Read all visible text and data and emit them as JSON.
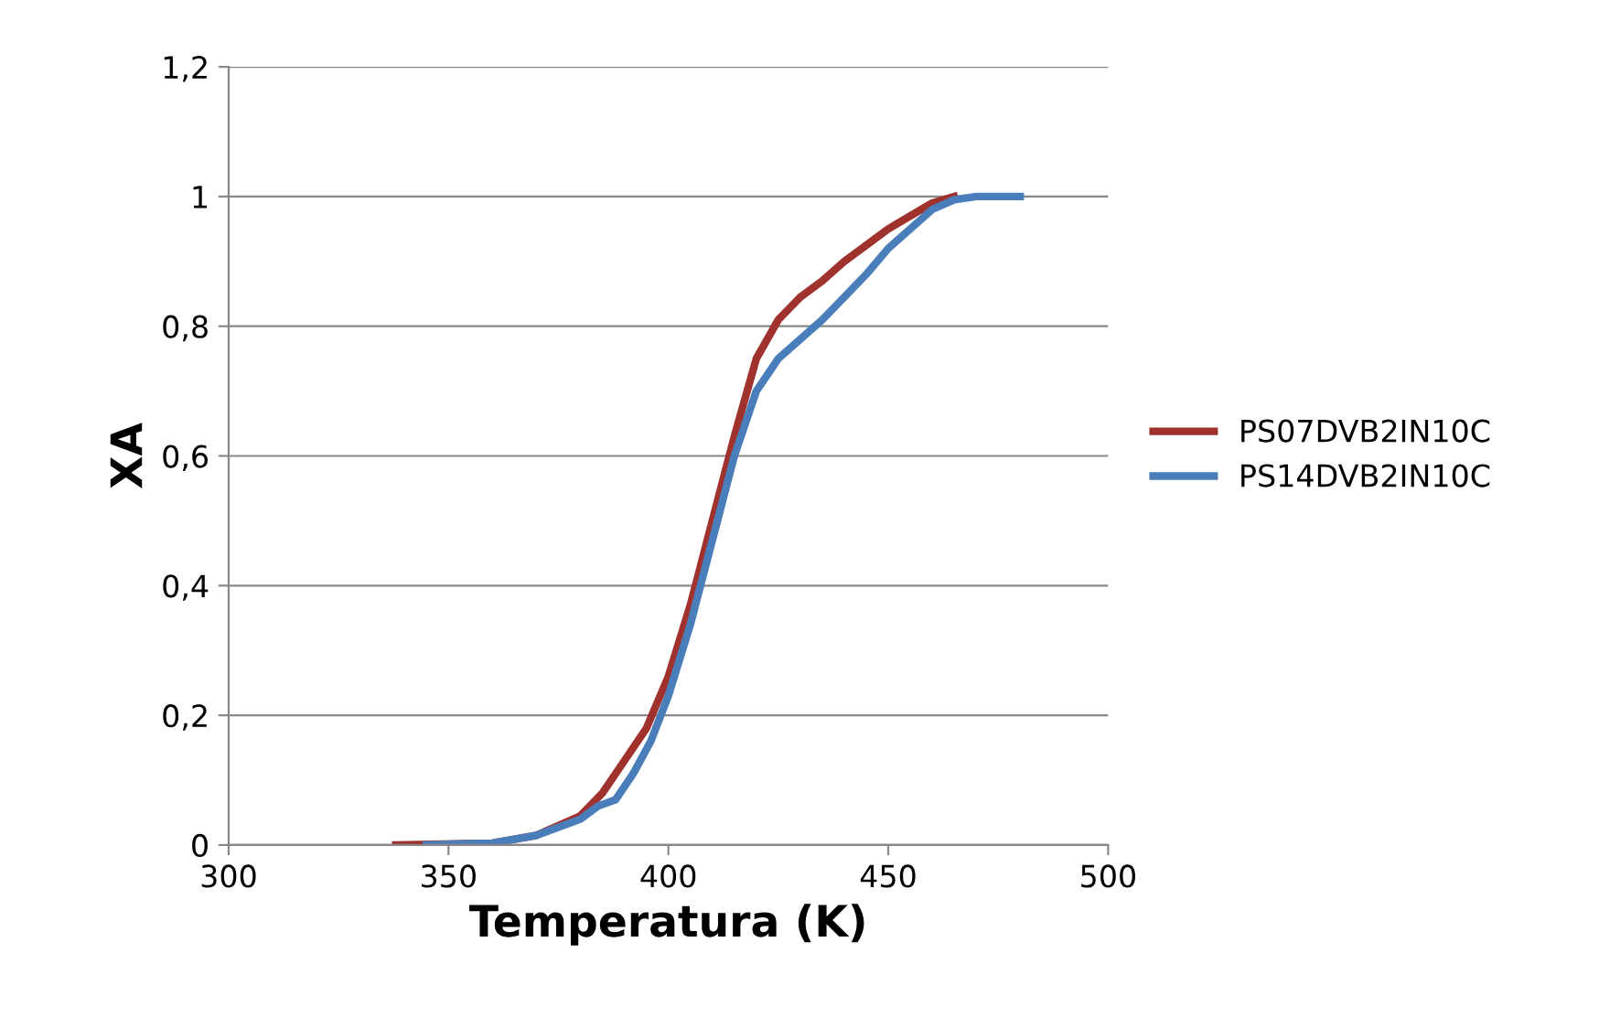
{
  "chart_data": {
    "type": "line",
    "xlabel": "Temperatura (K)",
    "ylabel": "XA",
    "xlim": [
      300,
      500
    ],
    "xticks": [
      300,
      350,
      400,
      450,
      500
    ],
    "ylim": [
      0,
      1.2
    ],
    "yticks": [
      0,
      {
        "value": 0.2,
        "label": "0,2"
      },
      {
        "value": 0.4,
        "label": "0,4"
      },
      {
        "value": 0.6,
        "label": "0,6"
      },
      {
        "value": 0.8,
        "label": "0,8"
      },
      1,
      {
        "value": 1.2,
        "label": "1,2"
      }
    ],
    "grid": "y",
    "legend": "right",
    "marker": "none",
    "line_style": "solid",
    "series": [
      {
        "name": "PS07DVB2IN10C",
        "color": "#a0322d",
        "x": [
          338,
          360,
          370,
          380,
          385,
          390,
          395,
          400,
          405,
          410,
          415,
          420,
          425,
          430,
          435,
          440,
          445,
          450,
          455,
          460,
          465
        ],
        "values": [
          0,
          0.003,
          0.015,
          0.045,
          0.08,
          0.13,
          0.18,
          0.26,
          0.37,
          0.5,
          0.63,
          0.75,
          0.81,
          0.845,
          0.87,
          0.9,
          0.925,
          0.95,
          0.97,
          0.99,
          1.0
        ]
      },
      {
        "name": "PS14DVB2IN10C",
        "color": "#4a7ebb",
        "x": [
          345,
          360,
          370,
          380,
          384,
          388,
          392,
          396,
          400,
          405,
          410,
          415,
          420,
          425,
          430,
          435,
          440,
          445,
          450,
          455,
          460,
          465,
          470,
          480
        ],
        "values": [
          0,
          0.003,
          0.015,
          0.04,
          0.06,
          0.07,
          0.11,
          0.16,
          0.23,
          0.34,
          0.47,
          0.6,
          0.7,
          0.75,
          0.78,
          0.81,
          0.845,
          0.88,
          0.92,
          0.95,
          0.98,
          0.995,
          1.0,
          1.0
        ]
      }
    ]
  }
}
